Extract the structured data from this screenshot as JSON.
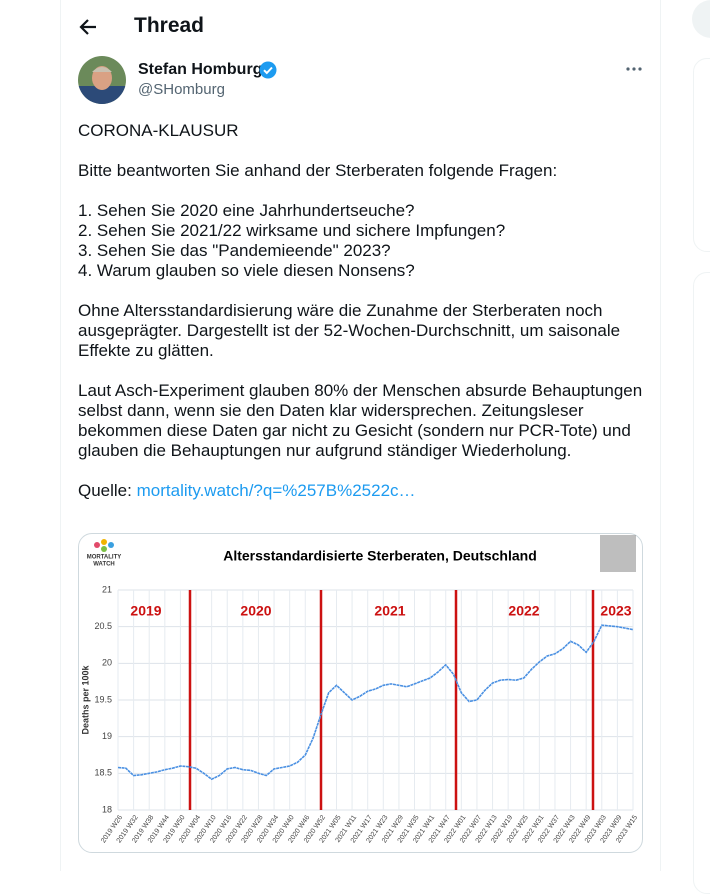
{
  "header": {
    "title": "Thread"
  },
  "tweet": {
    "author_name": "Stefan Homburg",
    "author_handle": "@SHomburg",
    "intro": "CORONA-KLAUSUR",
    "question_lead": "Bitte beantworten Sie anhand der Sterberaten folgende Fragen:",
    "questions": [
      "1. Sehen Sie 2020 eine Jahrhundertseuche?",
      "2. Sehen Sie 2021/22 wirksame und sichere Impfungen?",
      "3. Sehen Sie das \"Pandemieende\" 2023?",
      "4. Warum glauben so viele diesen Nonsens?"
    ],
    "paragraphs": [
      "Ohne Altersstandardisierung wäre die Zunahme der Sterberaten noch ausgeprägter. Dargestellt ist der 52-Wochen-Durchschnitt, um saisonale Effekte zu glätten.",
      "Laut Asch-Experiment glauben 80% der Menschen absurde Behauptungen selbst dann, wenn sie den Daten klar widersprechen. Zeitungsleser bekommen diese Daten gar nicht zu Gesicht (sondern nur PCR-Tote) und glauben die Behauptungen nur aufgrund ständiger Wiederholung."
    ],
    "source_label": "Quelle:",
    "source_link": "mortality.watch/?q=%257B%2522c…"
  },
  "chart_data": {
    "type": "line",
    "title": "Altersstandardisierte Sterberaten, Deutschland",
    "logo": [
      "MORTALITY",
      "WATCH"
    ],
    "y_label": "Deaths per 100k",
    "annotations": [
      "2019",
      "2020",
      "2021",
      "2022",
      "2023"
    ],
    "categories": [
      "2019 W26",
      null,
      "2019 W32",
      null,
      "2019 W38",
      null,
      "2019 W44",
      null,
      "2019 W50",
      null,
      "2020 W04",
      null,
      "2020 W10",
      null,
      "2020 W16",
      null,
      "2020 W22",
      null,
      "2020 W28",
      null,
      "2020 W34",
      null,
      "2020 W40",
      null,
      "2020 W46",
      null,
      "2020 W52",
      null,
      "2021 W05",
      null,
      "2021 W11",
      null,
      "2021 W17",
      null,
      "2021 W23",
      null,
      "2021 W29",
      null,
      "2021 W35",
      null,
      "2021 W41",
      null,
      "2021 W47",
      null,
      "2022 W01",
      null,
      "2022 W07",
      null,
      "2022 W13",
      null,
      "2022 W19",
      null,
      "2022 W25",
      null,
      "2022 W31",
      null,
      "2022 W37",
      null,
      "2022 W43",
      null,
      "2022 W49",
      null,
      "2023 W03",
      null,
      "2023 W09",
      null,
      "2023 W15"
    ],
    "values": [
      18.58,
      18.57,
      18.47,
      18.48,
      18.5,
      18.52,
      18.55,
      18.57,
      18.6,
      18.59,
      18.57,
      18.5,
      18.42,
      18.47,
      18.56,
      18.58,
      18.55,
      18.54,
      18.5,
      18.47,
      18.56,
      18.58,
      18.6,
      18.65,
      18.75,
      18.98,
      19.3,
      19.6,
      19.7,
      19.6,
      19.5,
      19.55,
      19.62,
      19.65,
      19.7,
      19.72,
      19.7,
      19.68,
      19.72,
      19.76,
      19.8,
      19.88,
      19.98,
      19.85,
      19.6,
      19.48,
      19.5,
      19.63,
      19.73,
      19.77,
      19.78,
      19.77,
      19.8,
      19.92,
      20.02,
      20.1,
      20.13,
      20.2,
      20.3,
      20.25,
      20.15,
      20.3,
      20.52,
      20.51,
      20.5,
      20.48,
      20.46
    ],
    "color": "#4a90e2",
    "annotation_color": "#cc1111",
    "ylim": [
      18,
      21
    ],
    "yticks": [
      18,
      18.5,
      19,
      19.5,
      20,
      20.5,
      21
    ],
    "grid": true
  }
}
